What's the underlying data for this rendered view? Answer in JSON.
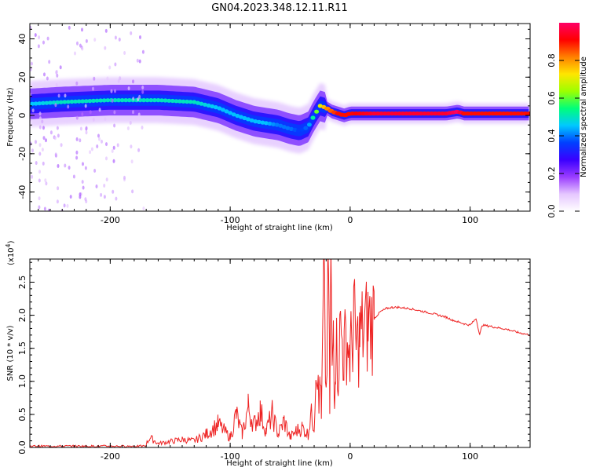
{
  "title": "GN04.2023.348.12.11.R11",
  "chart_data": [
    {
      "type": "heatmap",
      "xlabel": "Height of straight line (km)",
      "ylabel": "Frequency (Hz)",
      "xlim": [
        -267,
        150
      ],
      "ylim": [
        -50,
        48
      ],
      "xticks": [
        -200,
        -100,
        0,
        100
      ],
      "xtick_labels": [
        "-200",
        "-100",
        "0",
        "100"
      ],
      "yticks": [
        -40,
        -20,
        0,
        20,
        40
      ],
      "ytick_labels": [
        "-40",
        "-20",
        "0",
        "20",
        "40"
      ],
      "ridge": {
        "x": [
          -267,
          -240,
          -200,
          -160,
          -130,
          -110,
          -95,
          -80,
          -70,
          -60,
          -50,
          -42,
          -35,
          -30,
          -25,
          -20,
          -15,
          -10,
          -5,
          0,
          20,
          60,
          80,
          90,
          95,
          150
        ],
        "y": [
          6,
          7,
          8,
          8,
          7,
          4,
          0,
          -3,
          -4,
          -5,
          -7,
          -8,
          -6,
          0,
          5,
          4,
          2,
          1,
          0,
          1,
          1,
          1,
          1,
          2,
          1,
          1
        ],
        "amplitude": [
          0.45,
          0.5,
          0.5,
          0.5,
          0.5,
          0.45,
          0.45,
          0.45,
          0.45,
          0.4,
          0.4,
          0.35,
          0.4,
          0.55,
          0.7,
          0.8,
          0.85,
          0.9,
          0.9,
          0.9,
          0.95,
          0.95,
          0.95,
          1.0,
          0.9,
          0.9
        ]
      },
      "colorbar": {
        "label": "Normalized spectral amplitude",
        "range": [
          0.0,
          1.0
        ],
        "ticks": [
          0.0,
          0.2,
          0.4,
          0.6,
          0.8
        ],
        "tick_labels": [
          "0.0",
          "0.2",
          "0.4",
          "0.6",
          "0.8"
        ],
        "colors": [
          "#ffffff",
          "#e5c6ff",
          "#9a3cff",
          "#3a00ff",
          "#0040ff",
          "#00c8ff",
          "#00ff7a",
          "#9cff00",
          "#ffe600",
          "#ff8000",
          "#ff0000",
          "#ff0066"
        ]
      }
    },
    {
      "type": "line",
      "xlabel": "Height of straight line (km)",
      "ylabel": "SNR (10 * v/v)",
      "yscale_label": "(x10",
      "yscale_exp": "4",
      "yscale_close": ")",
      "xlim": [
        -267,
        150
      ],
      "ylim": [
        0,
        2.85
      ],
      "xticks": [
        -200,
        -100,
        0,
        100
      ],
      "xtick_labels": [
        "-200",
        "-100",
        "0",
        "100"
      ],
      "yticks": [
        0.0,
        0.5,
        1.0,
        1.5,
        2.0,
        2.5
      ],
      "ytick_labels": [
        "0.0",
        "0.5",
        "1.0",
        "1.5",
        "2.0",
        "2.5"
      ],
      "color": "#ee2222",
      "series": [
        {
          "x": [
            -267,
            -240,
            -200,
            -180,
            -170,
            -167,
            -160,
            -150,
            -140,
            -130,
            -120,
            -110,
            -100,
            -95,
            -90,
            -85,
            -80,
            -75,
            -70,
            -65,
            -60,
            -55,
            -50,
            -45,
            -40,
            -35,
            -33,
            -30,
            -28,
            -26,
            -25,
            -24,
            -22,
            -20,
            -18,
            -17,
            -16,
            -15,
            -14,
            -13,
            -12,
            -10,
            -8,
            -5,
            -3,
            0,
            3,
            5,
            8,
            10,
            15,
            20,
            25,
            30,
            35,
            40,
            50,
            60,
            70,
            80,
            85,
            90,
            95,
            100,
            105,
            108,
            110,
            115,
            120,
            130,
            140,
            150
          ],
          "y": [
            0.02,
            0.02,
            0.02,
            0.03,
            0.05,
            0.15,
            0.06,
            0.09,
            0.12,
            0.1,
            0.2,
            0.35,
            0.15,
            0.5,
            0.2,
            0.6,
            0.35,
            0.55,
            0.25,
            0.5,
            0.2,
            0.4,
            0.15,
            0.25,
            0.3,
            0.2,
            0.5,
            0.35,
            1.6,
            0.5,
            1.3,
            0.4,
            2.4,
            0.8,
            2.7,
            0.6,
            2.85,
            1.0,
            1.9,
            0.9,
            1.6,
            1.2,
            1.8,
            1.4,
            1.7,
            1.35,
            1.95,
            1.5,
            1.65,
            1.75,
            1.85,
            1.95,
            2.05,
            2.1,
            2.12,
            2.12,
            2.1,
            2.06,
            2.02,
            1.97,
            1.93,
            1.9,
            1.87,
            1.85,
            1.95,
            1.7,
            1.85,
            1.84,
            1.82,
            1.79,
            1.74,
            1.7
          ]
        }
      ]
    }
  ]
}
